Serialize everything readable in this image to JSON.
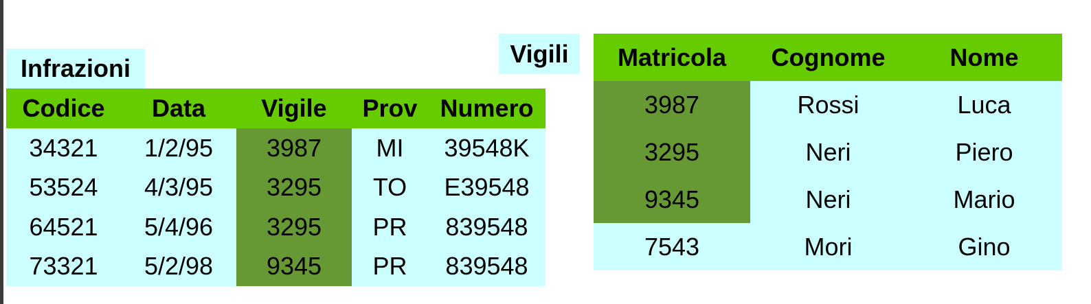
{
  "infrazioni": {
    "caption": "Infrazioni",
    "headers": [
      "Codice",
      "Data",
      "Vigile",
      "Prov",
      "Numero"
    ],
    "rows": [
      [
        "34321",
        "1/2/95",
        "3987",
        "MI",
        "39548K"
      ],
      [
        "53524",
        "4/3/95",
        "3295",
        "TO",
        "E39548"
      ],
      [
        "64521",
        "5/4/96",
        "3295",
        "PR",
        "839548"
      ],
      [
        "73321",
        "5/2/98",
        "9345",
        "PR",
        "839548"
      ]
    ]
  },
  "vigili": {
    "caption": "Vigili",
    "headers": [
      "Matricola",
      "Cognome",
      "Nome"
    ],
    "rows": [
      [
        "3987",
        "Rossi",
        "Luca"
      ],
      [
        "3295",
        "Neri",
        "Piero"
      ],
      [
        "9345",
        "Neri",
        "Mario"
      ],
      [
        "7543",
        "Mori",
        "Gino"
      ]
    ]
  },
  "colors": {
    "header_bg": "#66cc00",
    "cell_bg": "#ccffff",
    "highlight_bg": "#669933"
  }
}
